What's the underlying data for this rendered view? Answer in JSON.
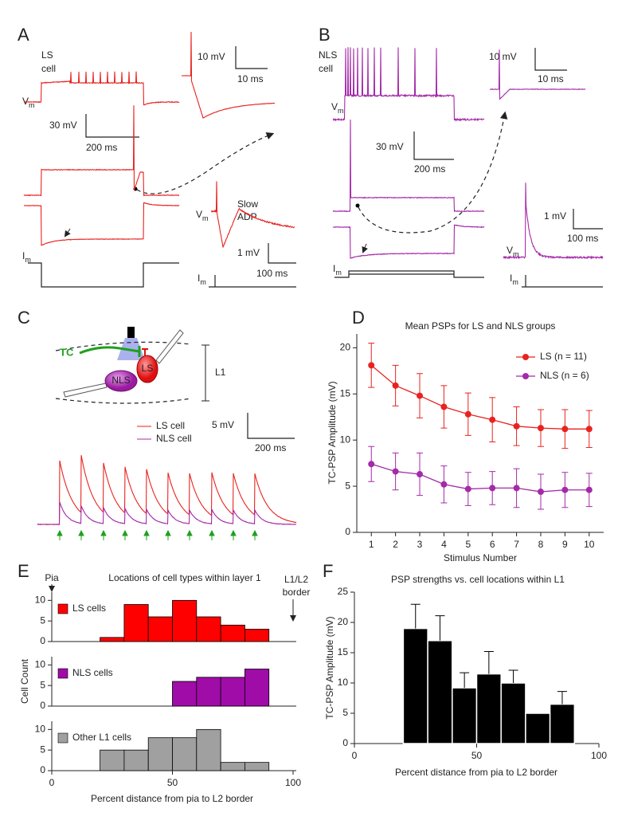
{
  "panel_labels": [
    "A",
    "B",
    "C",
    "D",
    "E",
    "F"
  ],
  "panel_a": {
    "cell_label": [
      "LS",
      "cell"
    ],
    "vm": [
      "V",
      "m"
    ],
    "im": [
      "I",
      "m"
    ],
    "scale": [
      "30 mV",
      "200 ms"
    ],
    "inset_spike_scale": [
      "10 mV",
      "10 ms"
    ],
    "inset_adp_label": [
      "Slow",
      "ADP"
    ],
    "inset_adp_vm": [
      "V",
      "m"
    ],
    "inset_adp_im": [
      "I",
      "m"
    ],
    "inset_adp_scale": [
      "1 mV",
      "100 ms"
    ]
  },
  "panel_b": {
    "cell_label": [
      "NLS",
      "cell"
    ],
    "vm": [
      "V",
      "m"
    ],
    "im": [
      "I",
      "m"
    ],
    "scale": [
      "30 mV",
      "200 ms"
    ],
    "inset_spike_scale": [
      "10 mV",
      "10 ms"
    ],
    "inset_adp_vm": [
      "V",
      "m"
    ],
    "inset_adp_im": [
      "I",
      "m"
    ],
    "inset_adp_scale": [
      "1 mV",
      "100 ms"
    ]
  },
  "panel_c": {
    "tc": "TC",
    "cells": [
      "LS",
      "NLS"
    ],
    "layer": "L1",
    "legend": [
      "LS cell",
      "NLS cell"
    ],
    "scale": [
      "5 mV",
      "200 ms"
    ]
  },
  "chart_data": [
    {
      "type": "line",
      "title": "Mean PSPs for LS and NLS groups",
      "xlabel": "Stimulus Number",
      "ylabel": "TC-PSP Amplitude (mV)",
      "x": [
        1,
        2,
        3,
        4,
        5,
        6,
        7,
        8,
        9,
        10
      ],
      "xlim": [
        0.4,
        10.6
      ],
      "xticks": [
        1,
        2,
        3,
        4,
        5,
        6,
        7,
        8,
        9,
        10
      ],
      "ylim": [
        0,
        21.5
      ],
      "yticks": [
        0,
        5,
        10,
        15,
        20
      ],
      "legend": "upper right",
      "series": [
        {
          "name": "LS (n = 11)",
          "color": "#e8231f",
          "values": [
            18.1,
            15.9,
            14.8,
            13.6,
            12.8,
            12.2,
            11.5,
            11.3,
            11.2,
            11.2
          ],
          "errors": [
            2.4,
            2.2,
            2.4,
            2.3,
            2.3,
            2.4,
            2.1,
            2.0,
            2.1,
            2.0
          ]
        },
        {
          "name": "NLS (n = 6)",
          "color": "#a42aa8",
          "values": [
            7.4,
            6.6,
            6.3,
            5.2,
            4.7,
            4.8,
            4.8,
            4.4,
            4.6,
            4.6
          ],
          "errors": [
            1.9,
            2.0,
            2.3,
            2.0,
            1.8,
            1.8,
            2.1,
            1.9,
            1.9,
            1.8
          ]
        }
      ]
    },
    {
      "type": "histogram",
      "title": "Locations of cell types within layer 1",
      "xlabel": "Percent distance from pia to L2 border",
      "ylabel": "Cell Count",
      "annotations": {
        "pia": "Pia",
        "border": [
          "L1/L2",
          "border"
        ]
      },
      "xlim": [
        0,
        100
      ],
      "xticks": [
        0,
        50,
        100
      ],
      "ylim": [
        0,
        12
      ],
      "yticks": [
        0,
        5,
        10
      ],
      "series": [
        {
          "name": "LS cells",
          "color": "#ff0000",
          "bins": [
            20,
            30,
            40,
            50,
            60,
            70,
            80,
            90
          ],
          "values": [
            1,
            9,
            6,
            10,
            6,
            4,
            3
          ]
        },
        {
          "name": "NLS cells",
          "color": "#a00ca8",
          "bins": [
            50,
            60,
            70,
            80,
            90
          ],
          "values": [
            6,
            7,
            7,
            9
          ]
        },
        {
          "name": "Other L1 cells",
          "color": "#a0a0a0",
          "bins": [
            20,
            30,
            40,
            50,
            60,
            70,
            80,
            90
          ],
          "values": [
            5,
            5,
            8,
            8,
            10,
            2,
            2
          ]
        }
      ]
    },
    {
      "type": "histogram",
      "title": "PSP strengths vs. cell locations within L1",
      "xlabel": "Percent distance from pia to L2 border",
      "ylabel": "TC-PSP Amplitude (mV)",
      "xlim": [
        0,
        100
      ],
      "xticks": [
        0,
        50,
        100
      ],
      "ylim": [
        0,
        25
      ],
      "yticks": [
        0,
        5,
        10,
        15,
        20,
        25
      ],
      "color": "#000000",
      "bins": [
        20,
        30,
        40,
        50,
        60,
        70,
        80,
        90
      ],
      "values": [
        19,
        17,
        9.2,
        11.5,
        10,
        5,
        6.5
      ],
      "errors": [
        4,
        4.1,
        2.5,
        3.7,
        2.1,
        null,
        2.1
      ]
    }
  ]
}
